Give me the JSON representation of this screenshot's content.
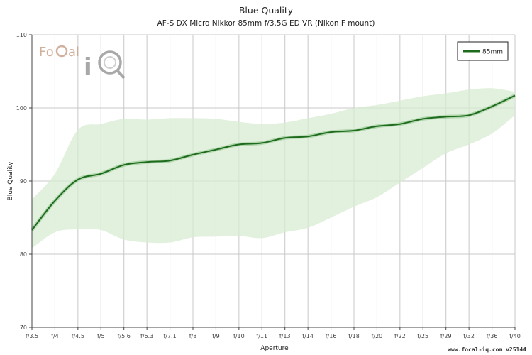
{
  "title": "Blue Quality",
  "subtitle": "AF-S DX Micro Nikkor 85mm f/3.5G ED VR (Nikon F mount)",
  "footer": "www.focal-iq.com  v25144",
  "logo": {
    "name": "FoCal iQ",
    "text_focal": "FoCal",
    "text_iq": "iQ"
  },
  "colors": {
    "line": "#1e6b1e",
    "band": "#d8ebd3",
    "grid": "#c8c8c8",
    "axis": "#444444"
  },
  "chart_data": {
    "type": "line",
    "title": "Blue Quality",
    "subtitle": "AF-S DX Micro Nikkor 85mm f/3.5G ED VR (Nikon F mount)",
    "xlabel": "Aperture",
    "ylabel": "Blue Quality",
    "ylim": [
      70,
      110
    ],
    "yticks": [
      70,
      80,
      90,
      100,
      110
    ],
    "grid": true,
    "legend": {
      "position": "top-right",
      "entries": [
        "85mm"
      ]
    },
    "categories": [
      "f/3.5",
      "f/4",
      "f/4.5",
      "f/5",
      "f/5.6",
      "f/6.3",
      "f/7.1",
      "f/8",
      "f/9",
      "f/10",
      "f/11",
      "f/13",
      "f/14",
      "f/16",
      "f/18",
      "f/20",
      "f/22",
      "f/25",
      "f/29",
      "f/32",
      "f/36",
      "f/40"
    ],
    "series": [
      {
        "name": "85mm",
        "values": [
          83.3,
          87.3,
          90.2,
          91.0,
          92.2,
          92.6,
          92.8,
          93.6,
          94.3,
          95.0,
          95.2,
          95.9,
          96.1,
          96.7,
          96.9,
          97.5,
          97.8,
          98.5,
          98.8,
          99.0,
          100.2,
          101.7
        ]
      }
    ],
    "band": {
      "upper": [
        87.5,
        91.0,
        97.0,
        97.8,
        98.5,
        98.4,
        98.6,
        98.6,
        98.5,
        98.1,
        97.8,
        98.0,
        98.6,
        99.2,
        100.0,
        100.4,
        101.0,
        101.6,
        102.0,
        102.5,
        102.7,
        102.2
      ],
      "lower": [
        80.8,
        83.0,
        83.4,
        83.3,
        82.0,
        81.6,
        81.6,
        82.3,
        82.4,
        82.5,
        82.2,
        83.0,
        83.6,
        85.0,
        86.5,
        87.8,
        89.8,
        91.8,
        93.8,
        95.0,
        96.5,
        99.0
      ]
    }
  }
}
